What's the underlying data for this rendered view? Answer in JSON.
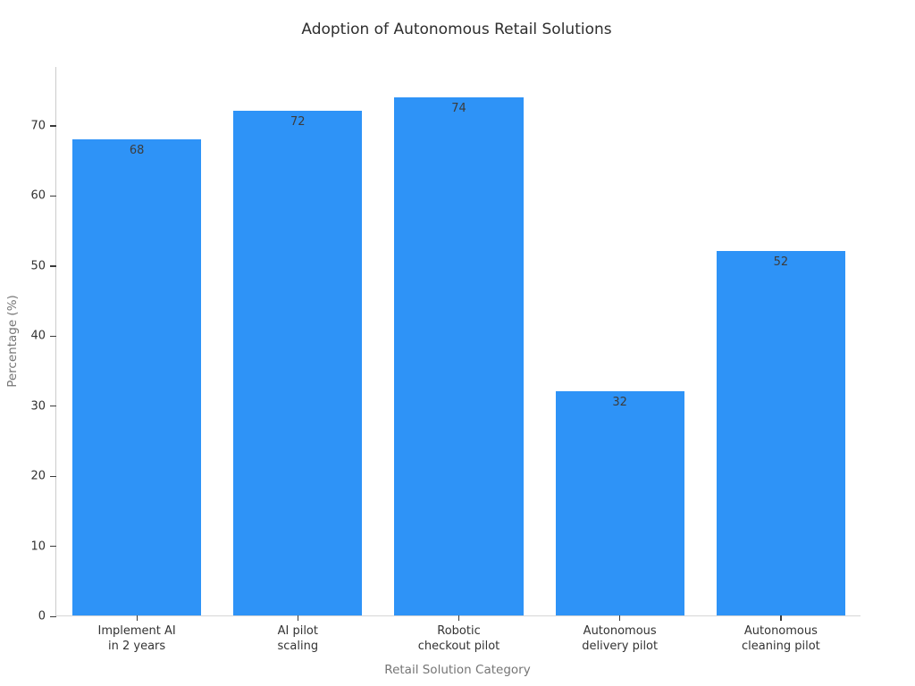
{
  "chart_data": {
    "type": "bar",
    "title": "Adoption of Autonomous Retail Solutions",
    "xlabel": "Retail Solution Category",
    "ylabel": "Percentage (%)",
    "categories": [
      "Implement AI\nin 2 years",
      "AI pilot\nscaling",
      "Robotic\ncheckout pilot",
      "Autonomous\ndelivery pilot",
      "Autonomous\ncleaning pilot"
    ],
    "values": [
      68,
      72,
      74,
      32,
      52
    ],
    "value_labels": [
      "68",
      "72",
      "74",
      "32",
      "52"
    ],
    "yticks": [
      0,
      10,
      20,
      30,
      40,
      50,
      60,
      70
    ],
    "ylim": [
      0,
      78.4
    ],
    "bar_width_fraction": 0.8,
    "grid": false,
    "legend": null,
    "colors": {
      "bar": "#2e93f7",
      "value_label": "#3c3c3c",
      "tick_label": "#333333",
      "axis_title": "#757575",
      "title": "#2e2e2e",
      "spine": "#cccccc"
    }
  }
}
